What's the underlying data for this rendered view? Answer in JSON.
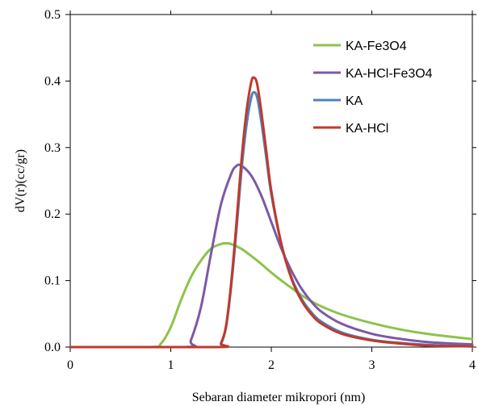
{
  "chart_data": {
    "type": "line",
    "xlabel": "Sebaran diameter mikropori (nm)",
    "ylabel": "dV(r)(cc/gr)",
    "xlim": [
      0,
      4
    ],
    "ylim": [
      0,
      0.5
    ],
    "x_ticks": [
      "0",
      "1",
      "2",
      "3",
      "4"
    ],
    "y_ticks": [
      "0.0",
      "0.1",
      "0.2",
      "0.3",
      "0.4",
      "0.5"
    ],
    "grid": false,
    "legend_position": "top-right",
    "series": [
      {
        "name": "KA-Fe3O4",
        "color": "#8cc34b",
        "x": [
          0,
          0.8,
          0.9,
          1.0,
          1.1,
          1.2,
          1.3,
          1.4,
          1.5,
          1.55,
          1.6,
          1.7,
          1.8,
          1.9,
          2.0,
          2.1,
          2.2,
          2.3,
          2.4,
          2.5,
          2.7,
          3.0,
          3.3,
          3.6,
          4.0
        ],
        "y": [
          0,
          0,
          0.005,
          0.03,
          0.07,
          0.105,
          0.13,
          0.148,
          0.155,
          0.156,
          0.155,
          0.148,
          0.137,
          0.125,
          0.112,
          0.1,
          0.089,
          0.078,
          0.069,
          0.061,
          0.049,
          0.036,
          0.026,
          0.019,
          0.012
        ]
      },
      {
        "name": "KA-HCl-Fe3O4",
        "color": "#7e57a8",
        "x": [
          0,
          1.15,
          1.2,
          1.3,
          1.4,
          1.5,
          1.6,
          1.65,
          1.7,
          1.8,
          1.9,
          2.0,
          2.1,
          2.2,
          2.3,
          2.4,
          2.5,
          2.7,
          3.0,
          3.3,
          3.6,
          4.0
        ],
        "y": [
          0,
          0,
          0.01,
          0.06,
          0.14,
          0.215,
          0.26,
          0.272,
          0.273,
          0.258,
          0.228,
          0.188,
          0.148,
          0.115,
          0.088,
          0.068,
          0.053,
          0.035,
          0.02,
          0.012,
          0.007,
          0.004
        ]
      },
      {
        "name": "KA",
        "color": "#4f81bd",
        "x": [
          0,
          1.45,
          1.5,
          1.55,
          1.6,
          1.65,
          1.7,
          1.75,
          1.8,
          1.83,
          1.86,
          1.9,
          1.95,
          2.0,
          2.1,
          2.2,
          2.3,
          2.4,
          2.5,
          2.7,
          3.0,
          3.3,
          3.6,
          4.0
        ],
        "y": [
          0,
          0,
          0.005,
          0.03,
          0.09,
          0.17,
          0.26,
          0.33,
          0.375,
          0.383,
          0.375,
          0.34,
          0.285,
          0.23,
          0.155,
          0.105,
          0.073,
          0.052,
          0.038,
          0.022,
          0.011,
          0.006,
          0.003,
          0.001
        ]
      },
      {
        "name": "KA-HCl",
        "color": "#c0392b",
        "x": [
          0,
          1.45,
          1.5,
          1.55,
          1.6,
          1.65,
          1.7,
          1.75,
          1.8,
          1.83,
          1.86,
          1.9,
          1.95,
          2.0,
          2.1,
          2.2,
          2.3,
          2.4,
          2.5,
          2.7,
          3.0,
          3.3,
          3.6,
          4.0
        ],
        "y": [
          0,
          0,
          0.006,
          0.032,
          0.095,
          0.18,
          0.275,
          0.35,
          0.398,
          0.405,
          0.395,
          0.355,
          0.295,
          0.235,
          0.155,
          0.103,
          0.07,
          0.049,
          0.035,
          0.02,
          0.01,
          0.005,
          0.002,
          0.001
        ]
      }
    ]
  }
}
